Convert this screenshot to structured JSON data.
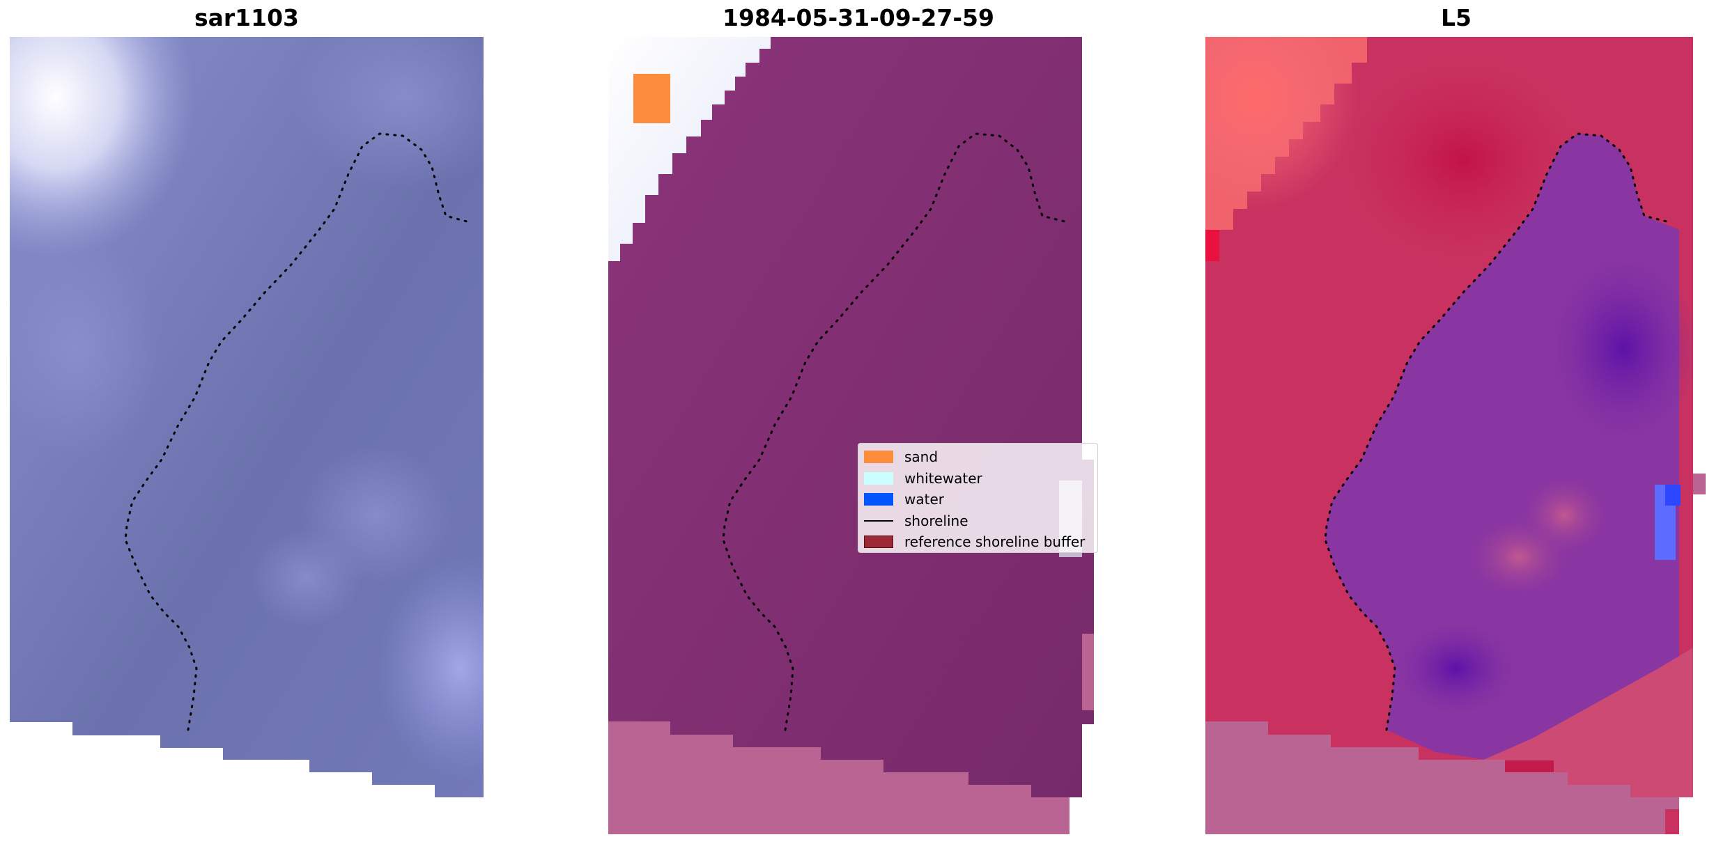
{
  "panels": [
    {
      "title": "sar1103"
    },
    {
      "title": "1984-05-31-09-27-59"
    },
    {
      "title": "L5"
    }
  ],
  "legend": {
    "items": [
      {
        "label": "sand",
        "color": "#fd8d3c",
        "kind": "patch"
      },
      {
        "label": "whitewater",
        "color": "#ccffff",
        "kind": "patch"
      },
      {
        "label": "water",
        "color": "#0055ff",
        "kind": "patch"
      },
      {
        "label": "shoreline",
        "color": "#000000",
        "kind": "line"
      },
      {
        "label": "reference shoreline buffer",
        "color": "#9b2a34",
        "kind": "patch"
      }
    ]
  },
  "colors": {
    "sar_base": "#7279b8",
    "composite_base": "#7d2b6e",
    "composite_buffer": "#b96493",
    "l5_land": "#c93260",
    "l5_sea": "#6a1ea0"
  }
}
